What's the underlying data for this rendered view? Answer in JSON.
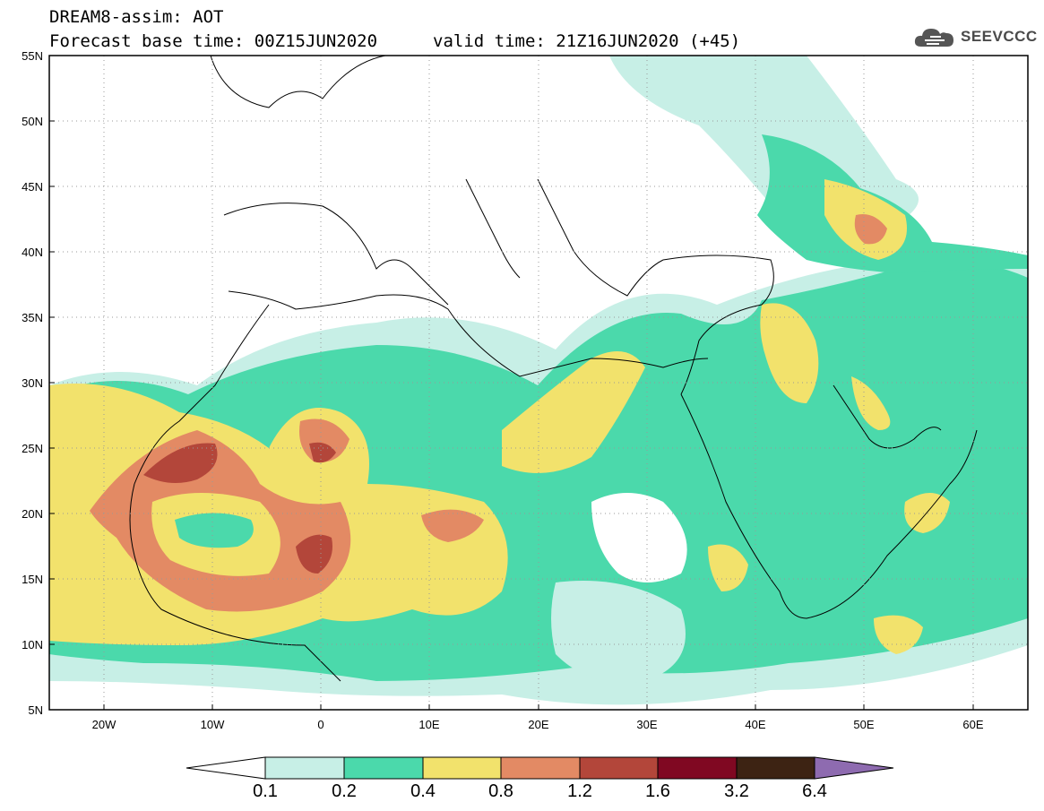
{
  "header": {
    "line1": "DREAM8-assim: AOT",
    "line2": "Forecast base time: 00Z15JUN2020",
    "valid": "valid time: 21Z16JUN2020 (+45)"
  },
  "logo": {
    "text": "SEEVCCC",
    "icon": "cloud-icon"
  },
  "map": {
    "lat_labels": [
      "55N",
      "50N",
      "45N",
      "40N",
      "35N",
      "30N",
      "25N",
      "20N",
      "15N",
      "10N",
      "5N"
    ],
    "lon_labels": [
      "20W",
      "10W",
      "0",
      "10E",
      "20E",
      "30E",
      "40E",
      "50E",
      "60E"
    ],
    "lat_range": [
      5,
      55
    ],
    "lon_range": [
      -25,
      65
    ],
    "projection": "cylindrical equidistant",
    "grid": "dotted"
  },
  "colorbar": {
    "labels": [
      "0.1",
      "0.2",
      "0.4",
      "0.8",
      "1.2",
      "1.6",
      "3.2",
      "6.4"
    ],
    "colors": [
      "#ffffff",
      "#c7efe6",
      "#4bd9ab",
      "#f2e26c",
      "#e38a64",
      "#b3463a",
      "#800822",
      "#3d2313",
      "#8e6bb0"
    ]
  }
}
